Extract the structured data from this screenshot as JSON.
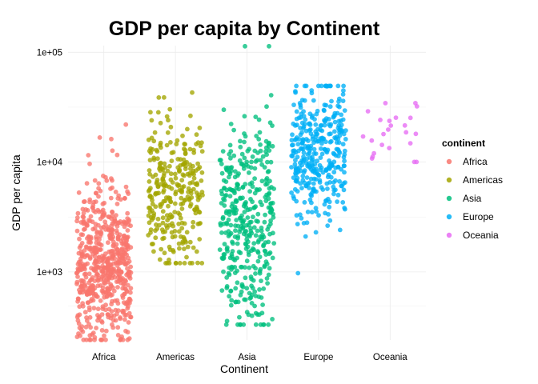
{
  "chart_data": {
    "type": "scatter",
    "title": "GDP per capita by Continent",
    "xlabel": "Continent",
    "ylabel": "GDP per capita",
    "y_scale": "log10",
    "ylim": [
      240,
      115000
    ],
    "y_ticks": [
      {
        "value": 1000,
        "label": "1e+03"
      },
      {
        "value": 10000,
        "label": "1e+04"
      },
      {
        "value": 100000,
        "label": "1e+05"
      }
    ],
    "categories": [
      "Africa",
      "Americas",
      "Asia",
      "Europe",
      "Oceania"
    ],
    "grid": true,
    "jitter": true,
    "legend": {
      "title": "continent",
      "position": "right"
    },
    "series": [
      {
        "name": "Africa",
        "color": "#F8766D",
        "approx_count": 624,
        "y_min": 241,
        "y_max": 21951,
        "median": 1192
      },
      {
        "name": "Americas",
        "color": "#A3A500",
        "approx_count": 300,
        "y_min": 1202,
        "y_max": 42952,
        "median": 5466
      },
      {
        "name": "Asia",
        "color": "#00BF7D",
        "approx_count": 396,
        "y_min": 331,
        "y_max": 113523,
        "median": 2647
      },
      {
        "name": "Europe",
        "color": "#00B0F6",
        "approx_count": 360,
        "y_min": 974,
        "y_max": 49357,
        "median": 12082
      },
      {
        "name": "Oceania",
        "color": "#E76BF3",
        "approx_count": 24,
        "y_min": 10040,
        "y_max": 34435,
        "median": 17983
      }
    ]
  }
}
